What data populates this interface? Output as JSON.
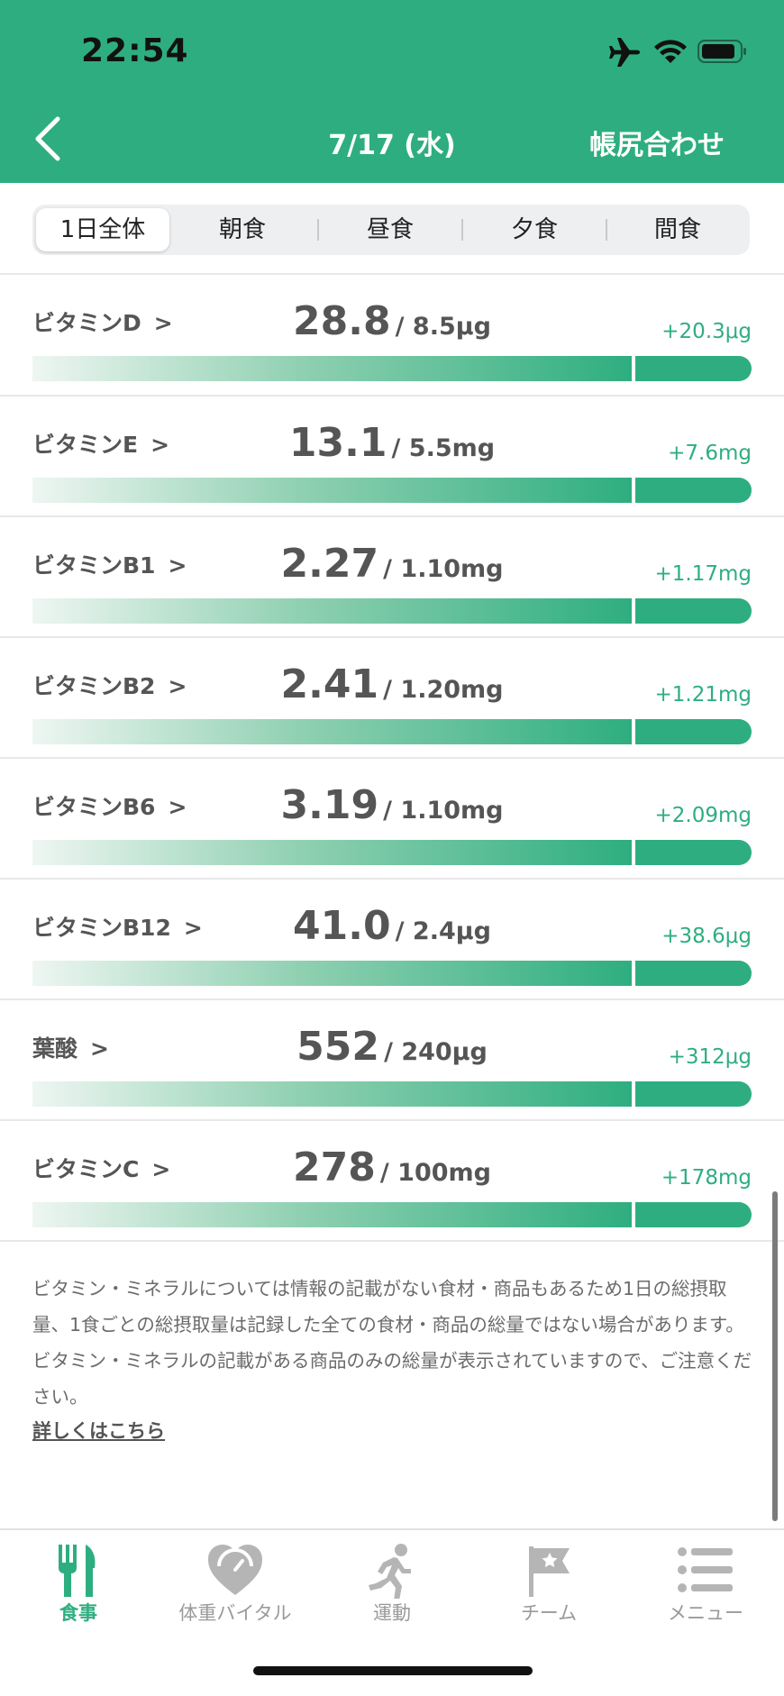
{
  "status_bar": {
    "time": "22:54"
  },
  "header": {
    "title": "7/17 (水)",
    "action_label": "帳尻合わせ"
  },
  "tabs": [
    {
      "label": "1日全体",
      "active": true
    },
    {
      "label": "朝食",
      "active": false
    },
    {
      "label": "昼食",
      "active": false
    },
    {
      "label": "夕食",
      "active": false
    },
    {
      "label": "間食",
      "active": false
    }
  ],
  "nutrients": [
    {
      "name": "ビタミンD",
      "intake": "28.8",
      "target": "/ 8.5μg",
      "diff": "+20.3μg"
    },
    {
      "name": "ビタミンE",
      "intake": "13.1",
      "target": "/ 5.5mg",
      "diff": "+7.6mg"
    },
    {
      "name": "ビタミンB1",
      "intake": "2.27",
      "target": "/ 1.10mg",
      "diff": "+1.17mg"
    },
    {
      "name": "ビタミンB2",
      "intake": "2.41",
      "target": "/ 1.20mg",
      "diff": "+1.21mg"
    },
    {
      "name": "ビタミンB6",
      "intake": "3.19",
      "target": "/ 1.10mg",
      "diff": "+2.09mg"
    },
    {
      "name": "ビタミンB12",
      "intake": "41.0",
      "target": "/ 2.4μg",
      "diff": "+38.6μg"
    },
    {
      "name": "葉酸",
      "intake": "552",
      "target": "/ 240μg",
      "diff": "+312μg"
    },
    {
      "name": "ビタミンC",
      "intake": "278",
      "target": "/ 100mg",
      "diff": "+178mg"
    }
  ],
  "chevron": ">",
  "note": {
    "text": "ビタミン・ミネラルについては情報の記載がない食材・商品もあるため1日の総摂取量、1食ごとの総摂取量は記録した全ての食材・商品の総量ではない場合があります。ビタミン・ミネラルの記載がある商品のみの総量が表示されていますので、ご注意ください。",
    "link_label": "詳しくはこちら"
  },
  "tab_bar": [
    {
      "label": "食事",
      "icon": "fork-knife-icon",
      "active": true
    },
    {
      "label": "体重バイタル",
      "icon": "heart-scale-icon",
      "active": false
    },
    {
      "label": "運動",
      "icon": "runner-icon",
      "active": false
    },
    {
      "label": "チーム",
      "icon": "flag-star-icon",
      "active": false
    },
    {
      "label": "メニュー",
      "icon": "menu-list-icon",
      "active": false
    }
  ],
  "colors": {
    "accent": "#2eae80",
    "text": "#555555",
    "muted": "#9a9a9a"
  }
}
